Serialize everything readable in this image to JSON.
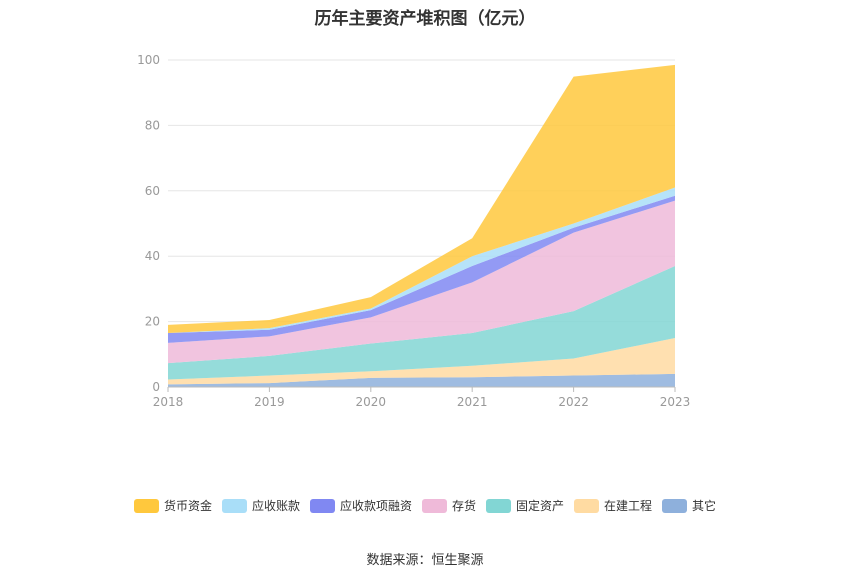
{
  "chart_data": {
    "type": "area",
    "stacked": true,
    "title": "历年主要资产堆积图（亿元）",
    "x": [
      "2018",
      "2019",
      "2020",
      "2021",
      "2022",
      "2023"
    ],
    "ylim": [
      0,
      100
    ],
    "yticks": [
      0,
      20,
      40,
      60,
      80,
      100
    ],
    "grid": true,
    "legend_position": "bottom",
    "series": [
      {
        "name": "其它",
        "color": "#8eb0dc",
        "values": [
          0.8,
          1.2,
          2.8,
          3.0,
          3.5,
          4.0
        ]
      },
      {
        "name": "在建工程",
        "color": "#ffdba2",
        "values": [
          1.5,
          2.3,
          2.0,
          3.5,
          5.2,
          11.0
        ]
      },
      {
        "name": "固定资产",
        "color": "#82d6d4",
        "values": [
          5.0,
          6.0,
          8.5,
          10.0,
          14.5,
          22.0
        ]
      },
      {
        "name": "存货",
        "color": "#efbad9",
        "values": [
          6.2,
          6.0,
          8.0,
          15.5,
          24.0,
          20.0
        ]
      },
      {
        "name": "应收款项融资",
        "color": "#8088f2",
        "values": [
          3.0,
          2.0,
          2.2,
          5.0,
          1.5,
          1.5
        ]
      },
      {
        "name": "应收账款",
        "color": "#a9def8",
        "values": [
          0.0,
          0.5,
          0.5,
          3.0,
          1.3,
          2.5
        ]
      },
      {
        "name": "货币资金",
        "color": "#ffc83d",
        "values": [
          2.5,
          2.5,
          3.5,
          5.5,
          44.9,
          37.5
        ]
      }
    ]
  },
  "legend_order": [
    "货币资金",
    "应收账款",
    "应收款项融资",
    "存货",
    "固定资产",
    "在建工程",
    "其它"
  ],
  "source": "数据来源：恒生聚源"
}
